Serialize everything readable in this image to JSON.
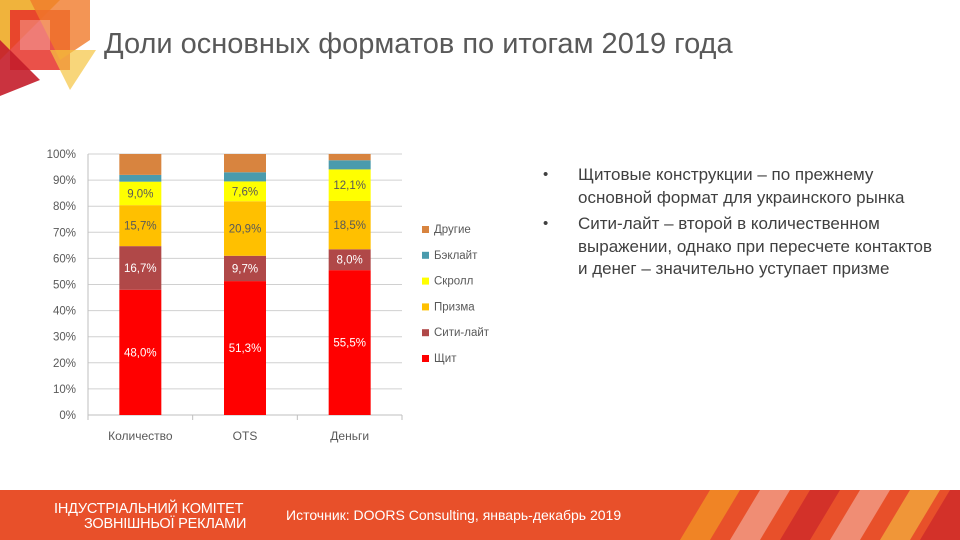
{
  "header": {
    "title": "Доли основных форматов по итогам 2019 года"
  },
  "chart_data": {
    "type": "bar",
    "stacked": true,
    "percent": true,
    "title": "",
    "xlabel": "",
    "ylabel": "",
    "ylim": [
      0,
      100
    ],
    "yticks": [
      "0%",
      "10%",
      "20%",
      "30%",
      "40%",
      "50%",
      "60%",
      "70%",
      "80%",
      "90%",
      "100%"
    ],
    "categories": [
      "Количество",
      "OTS",
      "Деньги"
    ],
    "legend_position": "right",
    "series": [
      {
        "name": "Щит",
        "color": "#ff0000",
        "values": [
          48.0,
          51.3,
          55.5
        ],
        "labels": [
          "48,0%",
          "51,3%",
          "55,5%"
        ],
        "label_color": "#ffffff"
      },
      {
        "name": "Сити-лайт",
        "color": "#b04848",
        "values": [
          16.7,
          9.7,
          8.0
        ],
        "labels": [
          "16,7%",
          "9,7%",
          "8,0%"
        ],
        "label_color": "#ffffff"
      },
      {
        "name": "Призма",
        "color": "#ffc000",
        "values": [
          15.7,
          20.9,
          18.5
        ],
        "labels": [
          "15,7%",
          "20,9%",
          "18,5%"
        ],
        "label_color": "#595959"
      },
      {
        "name": "Скролл",
        "color": "#ffff00",
        "values": [
          9.0,
          7.6,
          12.1
        ],
        "labels": [
          "9,0%",
          "7,6%",
          "12,1%"
        ],
        "label_color": "#595959"
      },
      {
        "name": "Бэклайт",
        "color": "#4a9bad",
        "values": [
          2.6,
          3.5,
          3.5
        ],
        "labels": null,
        "label_color": null
      },
      {
        "name": "Другие",
        "color": "#d8843f",
        "values": [
          8.0,
          7.0,
          2.4
        ],
        "labels": null,
        "label_color": null
      }
    ]
  },
  "bullets": [
    "Щитовые конструкции – по прежнему основной формат для украинского рынка",
    "Сити-лайт  – второй в количественном выражении, однако при пересчете контактов и денег – значительно уступает призме"
  ],
  "footer": {
    "org_line1": "ІНДУСТРІАЛЬНИЙ КОМІТЕТ",
    "org_line2": "ЗОВНІШНЬОЇ РЕКЛАМИ",
    "source": "Источник: DOORS Consulting, январь-декабрь 2019",
    "color": "#e8502a"
  }
}
